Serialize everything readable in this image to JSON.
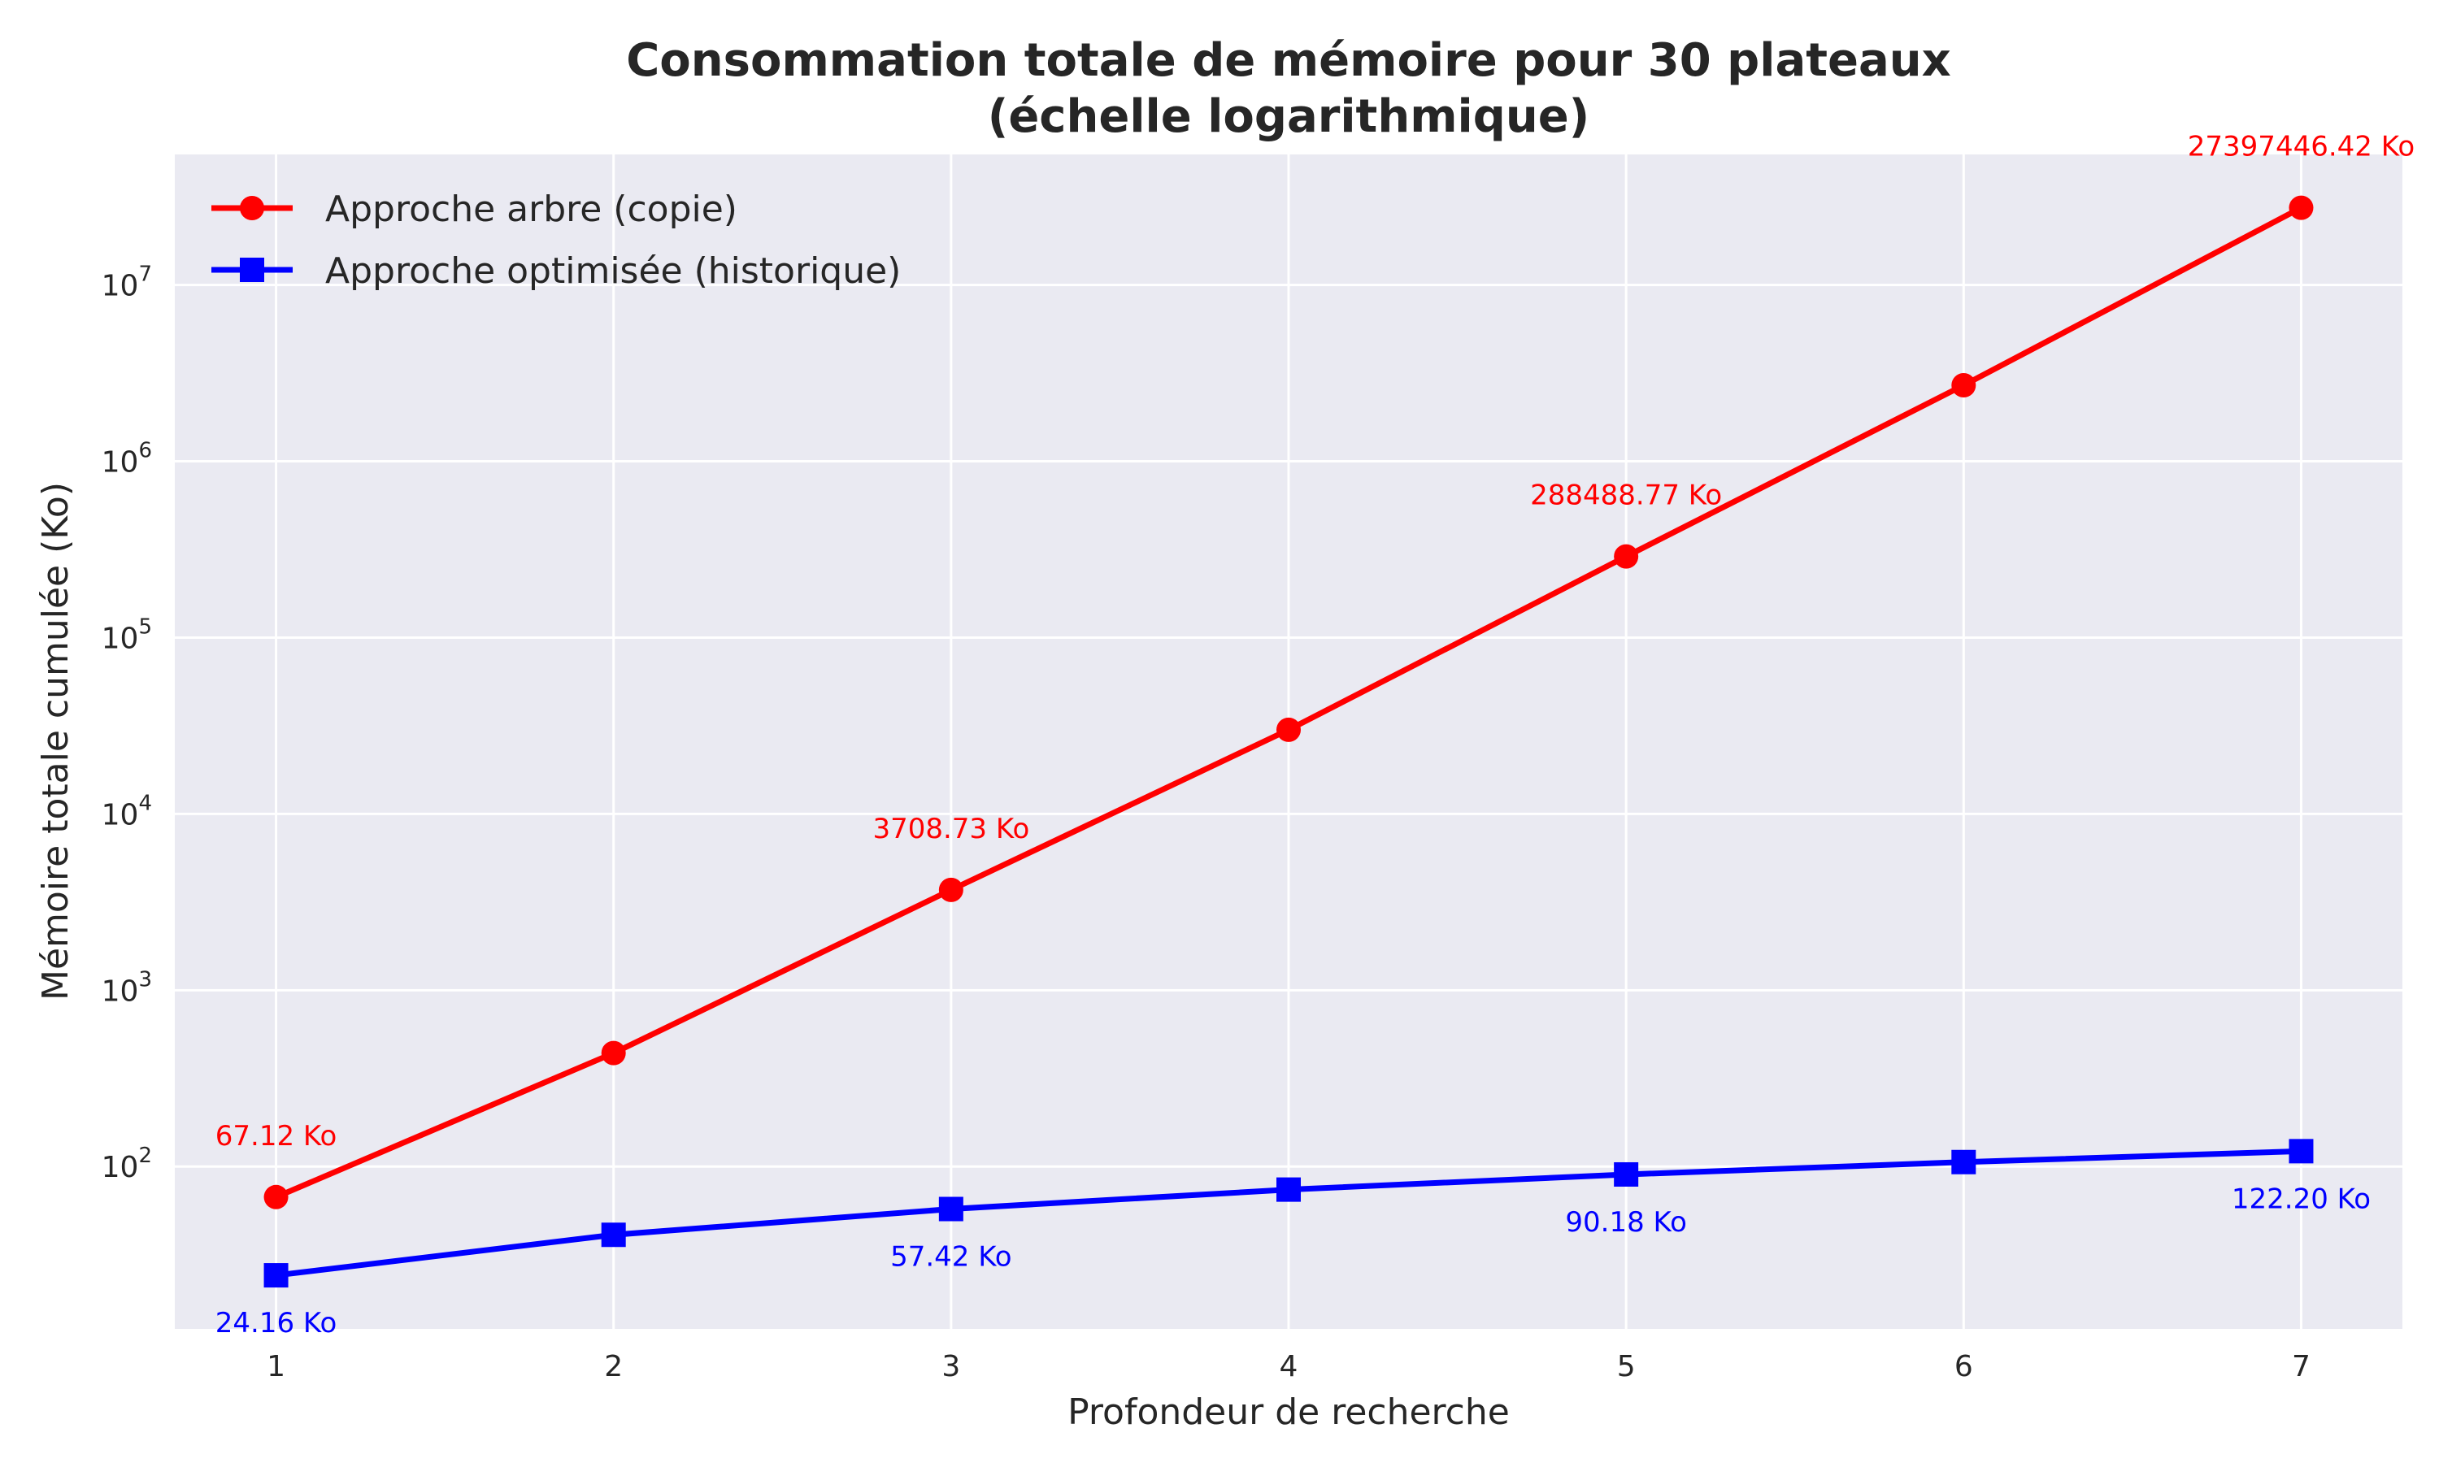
{
  "chart_data": {
    "type": "line",
    "title_line1": "Consommation totale de mémoire pour 30 plateaux",
    "title_line2": "(échelle logarithmique)",
    "xlabel": "Profondeur de recherche",
    "ylabel": "Mémoire totale cumulée (Ko)",
    "x": [
      1,
      2,
      3,
      4,
      5,
      6,
      7
    ],
    "xlim": [
      0.7,
      7.3
    ],
    "y_scale": "log",
    "ylim": [
      12,
      55000000
    ],
    "y_ticks": [
      100,
      1000,
      10000,
      100000,
      1000000,
      10000000
    ],
    "y_tick_labels": [
      {
        "base": "10",
        "exp": "2"
      },
      {
        "base": "10",
        "exp": "3"
      },
      {
        "base": "10",
        "exp": "4"
      },
      {
        "base": "10",
        "exp": "5"
      },
      {
        "base": "10",
        "exp": "6"
      },
      {
        "base": "10",
        "exp": "7"
      }
    ],
    "grid": true,
    "legend_position": "top-left",
    "series": [
      {
        "name": "Approche arbre (copie)",
        "color": "#ff0000",
        "marker": "circle",
        "values": [
          67.12,
          440,
          3708.73,
          30000,
          288488.77,
          2700000,
          27397446.42
        ],
        "annotations": [
          {
            "x": 1,
            "text": "67.12 Ko"
          },
          {
            "x": 3,
            "text": "3708.73 Ko"
          },
          {
            "x": 5,
            "text": "288488.77 Ko"
          },
          {
            "x": 7,
            "text": "27397446.42 Ko"
          }
        ]
      },
      {
        "name": "Approche optimisée (historique)",
        "color": "#0000ff",
        "marker": "square",
        "values": [
          24.16,
          41,
          57.42,
          74,
          90.18,
          106,
          122.2
        ],
        "annotations": [
          {
            "x": 1,
            "text": "24.16 Ko"
          },
          {
            "x": 3,
            "text": "57.42 Ko"
          },
          {
            "x": 5,
            "text": "90.18 Ko"
          },
          {
            "x": 7,
            "text": "122.20 Ko"
          }
        ]
      }
    ]
  },
  "colors": {
    "plot_background": "#eaeaf2",
    "grid": "#ffffff",
    "text": "#262626"
  }
}
